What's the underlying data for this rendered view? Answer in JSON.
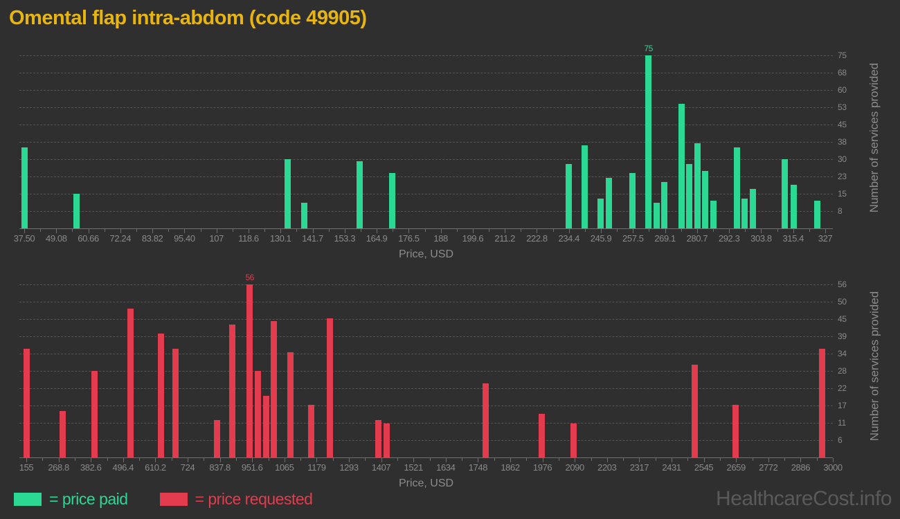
{
  "title": "Omental flap intra-abdom (code 49905)",
  "watermark": "HealthcareCost.info",
  "colors": {
    "background": "#2f2f2f",
    "title": "#e7b513",
    "paid": "#2bd894",
    "requested": "#e23c4e",
    "axis_text": "#8a8a8a",
    "gridline": "#545454",
    "watermark": "#5a5a5a"
  },
  "legend": {
    "paid_label": "= price paid",
    "requested_label": "= price requested"
  },
  "chart_data": [
    {
      "type": "bar",
      "series_name": "price paid",
      "color": "#2bd894",
      "xlabel": "Price, USD",
      "ylabel": "Number of services provided",
      "grid": "dashed-horizontal",
      "x_first_tick": 37.5,
      "x_last_tick": 327,
      "x_tick_labels": [
        "37.50",
        "49.08",
        "60.66",
        "72.24",
        "83.82",
        "95.40",
        "107",
        "118.6",
        "130.1",
        "141.7",
        "153.3",
        "164.9",
        "176.5",
        "188",
        "199.6",
        "211.2",
        "222.8",
        "234.4",
        "245.9",
        "257.5",
        "269.1",
        "280.7",
        "292.3",
        "303.8",
        "315.4",
        "327"
      ],
      "y_tick_values": [
        7.5,
        15,
        22.5,
        30,
        37.5,
        45,
        52.5,
        60,
        67.5,
        75
      ],
      "y_tick_labels": [
        "8",
        "15",
        "23",
        "30",
        "38",
        "45",
        "53",
        "60",
        "68",
        "75"
      ],
      "ylim": [
        0,
        78
      ],
      "bars": [
        {
          "x": 37.5,
          "y": 35
        },
        {
          "x": 56.5,
          "y": 15
        },
        {
          "x": 132.8,
          "y": 30
        },
        {
          "x": 138.6,
          "y": 11
        },
        {
          "x": 158.7,
          "y": 29
        },
        {
          "x": 170.4,
          "y": 24
        },
        {
          "x": 234.2,
          "y": 28
        },
        {
          "x": 240.1,
          "y": 36
        },
        {
          "x": 245.8,
          "y": 13
        },
        {
          "x": 248.7,
          "y": 22
        },
        {
          "x": 257.3,
          "y": 24
        },
        {
          "x": 263.1,
          "y": 75,
          "label": "75"
        },
        {
          "x": 266,
          "y": 11
        },
        {
          "x": 268.9,
          "y": 20
        },
        {
          "x": 275,
          "y": 54
        },
        {
          "x": 277.9,
          "y": 28
        },
        {
          "x": 280.8,
          "y": 37
        },
        {
          "x": 283.7,
          "y": 25
        },
        {
          "x": 286.6,
          "y": 12
        },
        {
          "x": 295,
          "y": 35
        },
        {
          "x": 297.9,
          "y": 13
        },
        {
          "x": 300.8,
          "y": 17
        },
        {
          "x": 312.4,
          "y": 30
        },
        {
          "x": 315.5,
          "y": 19
        },
        {
          "x": 324.2,
          "y": 12
        }
      ]
    },
    {
      "type": "bar",
      "series_name": "price requested",
      "color": "#e23c4e",
      "xlabel": "Price, USD",
      "ylabel": "Number of services provided",
      "grid": "dashed-horizontal",
      "x_first_tick": 155,
      "x_last_tick": 3000,
      "x_tick_labels": [
        "155",
        "268.8",
        "382.6",
        "496.4",
        "610.2",
        "724",
        "837.8",
        "951.6",
        "1065",
        "1179",
        "1293",
        "1407",
        "1521",
        "1634",
        "1748",
        "1862",
        "1976",
        "2090",
        "2203",
        "2317",
        "2431",
        "2545",
        "2659",
        "2772",
        "2886",
        "3000"
      ],
      "y_tick_values": [
        5.6,
        11.2,
        16.8,
        22.4,
        28,
        33.6,
        39.2,
        44.8,
        50.4,
        56
      ],
      "y_tick_labels": [
        "6",
        "11",
        "17",
        "22",
        "28",
        "34",
        "39",
        "45",
        "50",
        "56"
      ],
      "ylim": [
        0,
        58.8
      ],
      "bars": [
        {
          "x": 155,
          "y": 35
        },
        {
          "x": 283,
          "y": 15
        },
        {
          "x": 395,
          "y": 28
        },
        {
          "x": 522,
          "y": 48
        },
        {
          "x": 630,
          "y": 40
        },
        {
          "x": 681,
          "y": 35
        },
        {
          "x": 828,
          "y": 12
        },
        {
          "x": 881,
          "y": 43
        },
        {
          "x": 943,
          "y": 56,
          "label": "56"
        },
        {
          "x": 971,
          "y": 28
        },
        {
          "x": 1000,
          "y": 20
        },
        {
          "x": 1029,
          "y": 44
        },
        {
          "x": 1086,
          "y": 34
        },
        {
          "x": 1160,
          "y": 17
        },
        {
          "x": 1225,
          "y": 45
        },
        {
          "x": 1397,
          "y": 12
        },
        {
          "x": 1425,
          "y": 11
        },
        {
          "x": 1776,
          "y": 24
        },
        {
          "x": 1974,
          "y": 14
        },
        {
          "x": 2086,
          "y": 11
        },
        {
          "x": 2512,
          "y": 30
        },
        {
          "x": 2656,
          "y": 17
        },
        {
          "x": 2963,
          "y": 35
        }
      ]
    }
  ]
}
